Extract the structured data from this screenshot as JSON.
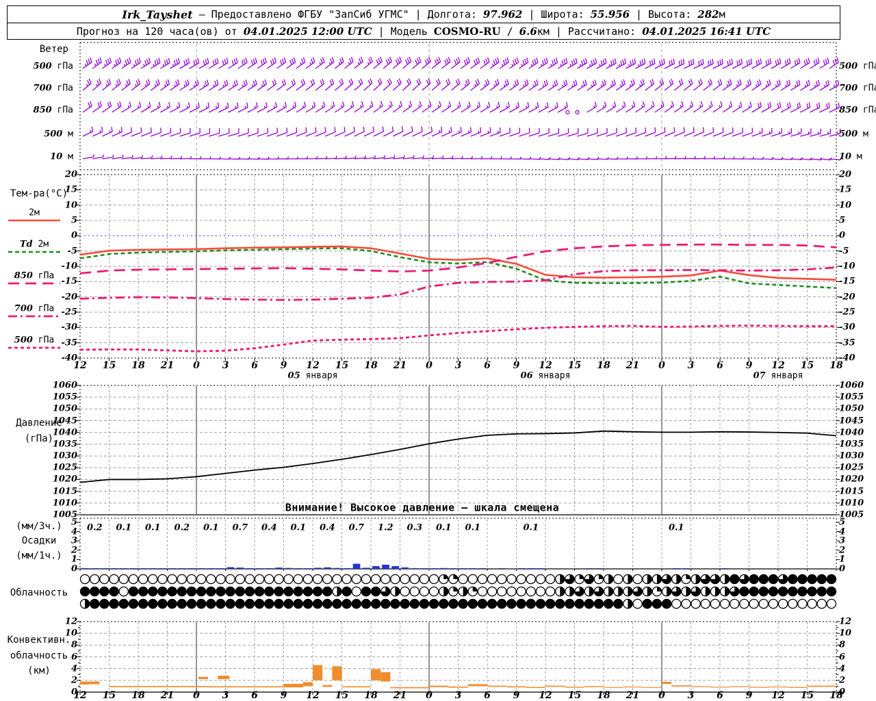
{
  "header": {
    "station": "Irk_Tayshet",
    "dash": "—",
    "provided": "Предоставлено ФГБУ \"ЗапСиб УГМС\"",
    "separator": "|",
    "lon_label": "Долгота:",
    "lon_value": "97.962",
    "lat_label": "Широта:",
    "lat_value": "55.956",
    "alt_label": "Высота:",
    "alt_value": "282",
    "alt_unit": "м",
    "forecast_label": "Прогноз на 120 часа(ов) от",
    "run_time": "04.01.2025 12:00 UTC",
    "model_label": "Модель",
    "model_name": "COSMO-RU",
    "slash": "/",
    "model_res_num": "6.6",
    "model_res_unit": "км",
    "calc_label": "Рассчитано:",
    "calc_time": "04.01.2025 16:41 UTC"
  },
  "x_axis": {
    "hour_labels": [
      12,
      15,
      18,
      21,
      0,
      3,
      6,
      9,
      12,
      15,
      18,
      21,
      0,
      3,
      6,
      9,
      12,
      15,
      18,
      21,
      0,
      3,
      6,
      9,
      12,
      15,
      18
    ],
    "date_labels": [
      {
        "text": "05 января",
        "slot": 8
      },
      {
        "text": "06 января",
        "slot": 16
      },
      {
        "text": "07 января",
        "slot": 24
      }
    ],
    "day_boundary_slots": [
      4,
      12,
      20
    ]
  },
  "chart_data": [
    {
      "id": "wind",
      "type": "scatter",
      "subtype": "wind-barbs",
      "title": "Ветер",
      "step_h": 3,
      "hours_total": 78,
      "barb_color": "#9400d3",
      "levels": [
        {
          "label": "500 гПа",
          "dir_deg": [
            55,
            56,
            58,
            60,
            60,
            58,
            56,
            55,
            54,
            52,
            50,
            50,
            52,
            54,
            55,
            56,
            58,
            60,
            62,
            63,
            64,
            65,
            64,
            62,
            60,
            58,
            56
          ],
          "speed_ms": [
            18,
            18,
            17,
            17,
            16,
            16,
            15,
            15,
            14,
            14,
            15,
            15,
            16,
            16,
            17,
            17,
            18,
            18,
            17,
            17,
            16,
            16,
            15,
            15,
            16,
            16,
            17
          ]
        },
        {
          "label": "700 гПа",
          "dir_deg": [
            50,
            52,
            54,
            56,
            58,
            58,
            56,
            54,
            52,
            50,
            48,
            48,
            50,
            52,
            54,
            56,
            58,
            58,
            56,
            54,
            52,
            52,
            54,
            56,
            58,
            60,
            60
          ],
          "speed_ms": [
            14,
            14,
            13,
            13,
            12,
            12,
            12,
            11,
            11,
            10,
            10,
            11,
            11,
            12,
            12,
            13,
            13,
            13,
            12,
            12,
            11,
            11,
            12,
            12,
            13,
            13,
            14
          ]
        },
        {
          "label": "850 гПа",
          "dir_deg": [
            55,
            57,
            60,
            62,
            64,
            64,
            62,
            60,
            58,
            56,
            54,
            54,
            56,
            58,
            60,
            62,
            62,
            60,
            58,
            56,
            55,
            55,
            57,
            60,
            62,
            64,
            65
          ],
          "speed_ms": [
            10,
            10,
            9,
            9,
            8,
            8,
            8,
            7,
            7,
            7,
            8,
            8,
            8,
            9,
            9,
            9,
            8,
            8,
            8,
            8,
            9,
            9,
            9,
            10,
            10,
            10,
            11
          ],
          "calm_hours": [
            50,
            51
          ]
        },
        {
          "label": "500 м",
          "dir_deg": [
            65,
            67,
            70,
            72,
            74,
            74,
            72,
            70,
            68,
            66,
            64,
            64,
            66,
            68,
            70,
            72,
            74,
            74,
            72,
            70,
            68,
            68,
            70,
            72,
            74,
            76,
            76
          ],
          "speed_ms": [
            7,
            7,
            6,
            6,
            6,
            5,
            5,
            5,
            5,
            6,
            6,
            6,
            7,
            7,
            7,
            6,
            6,
            5,
            5,
            5,
            6,
            6,
            6,
            7,
            7,
            7,
            8
          ]
        },
        {
          "label": "10 м",
          "dir_deg": [
            80,
            82,
            85,
            88,
            90,
            92,
            92,
            90,
            88,
            86,
            84,
            84,
            86,
            88,
            90,
            92,
            94,
            94,
            92,
            90,
            88,
            88,
            90,
            92,
            94,
            96,
            96
          ],
          "speed_ms": [
            4,
            4,
            3,
            3,
            3,
            3,
            2,
            2,
            2,
            3,
            3,
            3,
            4,
            4,
            4,
            3,
            3,
            3,
            2,
            2,
            3,
            3,
            3,
            4,
            4,
            4,
            4
          ]
        }
      ]
    },
    {
      "id": "temperature",
      "type": "line",
      "title": "Тем-ра(°C)",
      "ylim": [
        -40,
        20
      ],
      "ytick_step": 5,
      "step_h": 3,
      "zero_line_color": "#4a4aff",
      "series": [
        {
          "name": "2м",
          "color": "#f94b3a",
          "dash": "",
          "width": 2.6,
          "values": [
            -6.2,
            -4.9,
            -4.6,
            -4.5,
            -4.4,
            -4.1,
            -3.9,
            -3.8,
            -3.6,
            -3.5,
            -4.1,
            -5.8,
            -7.6,
            -7.9,
            -7.4,
            -9.2,
            -12.8,
            -13.6,
            -13.7,
            -13.6,
            -13.4,
            -13.0,
            -11.4,
            -12.9,
            -13.8,
            -14.1,
            -14.4
          ]
        },
        {
          "name": "Td 2м",
          "color": "#1f8c1f",
          "dash": "6 4",
          "width": 2.6,
          "values": [
            -7.4,
            -6.0,
            -5.5,
            -5.3,
            -5.1,
            -4.8,
            -4.6,
            -4.4,
            -4.2,
            -4.1,
            -5.0,
            -7.0,
            -8.7,
            -9.1,
            -8.6,
            -10.8,
            -14.6,
            -15.4,
            -15.5,
            -15.5,
            -15.3,
            -14.8,
            -13.4,
            -15.6,
            -16.1,
            -16.6,
            -17.1
          ]
        },
        {
          "name": "850 гПа",
          "color": "#ed1a75",
          "dash": "16 9",
          "width": 2.8,
          "values": [
            -12.3,
            -11.4,
            -11.1,
            -11.0,
            -10.9,
            -10.8,
            -10.7,
            -10.6,
            -10.8,
            -11.0,
            -11.4,
            -11.7,
            -11.4,
            -10.4,
            -8.9,
            -6.9,
            -5.1,
            -4.1,
            -3.5,
            -3.1,
            -3.0,
            -2.9,
            -2.9,
            -3.0,
            -3.0,
            -3.2,
            -3.8
          ]
        },
        {
          "name": "700 гПа",
          "color": "#ed1a75",
          "dash": "13 5 3 5",
          "width": 2.8,
          "values": [
            -20.6,
            -20.3,
            -20.1,
            -20.2,
            -20.4,
            -20.7,
            -20.9,
            -21.0,
            -20.9,
            -20.6,
            -20.3,
            -19.2,
            -16.6,
            -15.4,
            -15.1,
            -15.0,
            -14.6,
            -12.6,
            -11.6,
            -11.3,
            -11.3,
            -11.2,
            -11.3,
            -11.4,
            -11.3,
            -11.0,
            -10.4
          ]
        },
        {
          "name": "500 гПа",
          "color": "#ed1a75",
          "dash": "5 4",
          "width": 2.8,
          "values": [
            -37.3,
            -37.2,
            -37.2,
            -37.5,
            -37.8,
            -37.6,
            -36.8,
            -35.6,
            -34.3,
            -34.0,
            -33.8,
            -33.5,
            -32.6,
            -31.8,
            -31.2,
            -30.6,
            -30.1,
            -29.8,
            -29.6,
            -29.5,
            -29.8,
            -29.7,
            -29.5,
            -29.4,
            -29.5,
            -29.6,
            -29.6
          ]
        }
      ]
    },
    {
      "id": "pressure",
      "type": "line",
      "title": "Давление",
      "unit": "(гПа)",
      "ylim": [
        1005,
        1060
      ],
      "ytick_step": 5,
      "step_h": 3,
      "color": "#000000",
      "warning": "Внимание! Высокое давление — шкала смещена",
      "values": [
        1018.8,
        1020.0,
        1020.0,
        1020.3,
        1021.2,
        1022.6,
        1024.0,
        1025.2,
        1026.8,
        1028.6,
        1030.6,
        1032.8,
        1035.2,
        1037.2,
        1038.8,
        1039.4,
        1039.5,
        1039.8,
        1040.6,
        1040.3,
        1040.1,
        1040.1,
        1040.3,
        1040.2,
        1040.0,
        1039.7,
        1038.6
      ]
    },
    {
      "id": "precipitation",
      "type": "bar",
      "title": "Осадки",
      "unit_top": "(мм/3ч.)",
      "unit_bottom": "(мм/1ч.)",
      "ylim": [
        0,
        5
      ],
      "bar_color": "#2435cf",
      "amount_labels_3h": [
        "0.2",
        "0.1",
        "0.1",
        "0.2",
        "0.1",
        "0.7",
        "0.4",
        "0.1",
        "0.4",
        "0.7",
        "1.2",
        "0.3",
        "0.1",
        "0.1",
        "",
        "0.1",
        "",
        "",
        "",
        "",
        "0.1",
        "",
        "",
        "",
        "",
        ""
      ],
      "hourly_bars": [
        [
          0,
          0.08
        ],
        [
          1,
          0.07
        ],
        [
          2,
          0.05
        ],
        [
          3,
          0.05
        ],
        [
          4,
          0.04
        ],
        [
          5,
          0.03
        ],
        [
          6,
          0.04
        ],
        [
          7,
          0.03
        ],
        [
          8,
          0.03
        ],
        [
          9,
          0.07
        ],
        [
          10,
          0.07
        ],
        [
          11,
          0.06
        ],
        [
          12,
          0.04
        ],
        [
          13,
          0.03
        ],
        [
          14,
          0.04
        ],
        [
          15,
          0.18
        ],
        [
          16,
          0.14
        ],
        [
          17,
          0.08
        ],
        [
          18,
          0.06
        ],
        [
          19,
          0.05
        ],
        [
          20,
          0.14
        ],
        [
          21,
          0.1
        ],
        [
          22,
          0.06
        ],
        [
          23,
          0.05
        ],
        [
          24,
          0.12
        ],
        [
          25,
          0.16
        ],
        [
          26,
          0.1
        ],
        [
          27,
          0.08
        ],
        [
          28,
          0.55
        ],
        [
          29,
          0.12
        ],
        [
          30,
          0.3
        ],
        [
          31,
          0.45
        ],
        [
          32,
          0.3
        ],
        [
          33,
          0.16
        ],
        [
          34,
          0.06
        ],
        [
          35,
          0.05
        ],
        [
          36,
          0.06
        ],
        [
          37,
          0.09
        ],
        [
          38,
          0.07
        ],
        [
          39,
          0.05
        ],
        [
          40,
          0.04
        ],
        [
          41,
          0.03
        ],
        [
          43,
          0.03
        ],
        [
          45,
          0.04
        ],
        [
          46,
          0.04
        ],
        [
          47,
          0.03
        ],
        [
          52,
          0.04
        ],
        [
          53,
          0.03
        ],
        [
          61,
          0.04
        ],
        [
          62,
          0.03
        ],
        [
          66,
          0.03
        ]
      ]
    },
    {
      "id": "cloudiness",
      "type": "heatmap",
      "subtype": "cloud-cover-rows",
      "title": "Облачность",
      "cover_eighths_rows": [
        "000000000000000000000000000000000000022000000000046262404044642466486888688888",
        "888808888888888888888888884808864000042420000000044646444642464644468888888888",
        "488888888888888888888888888888888888888888888888888888884088800000000000000000"
      ]
    },
    {
      "id": "convective",
      "type": "bar",
      "subtype": "range-bars",
      "title_1": "Конвективн.",
      "title_2": "облачность",
      "title_3": "(км)",
      "ylim": [
        0,
        12
      ],
      "ytick_step": 2,
      "bar_color": "#ef8d2e",
      "bars": [
        [
          0,
          1,
          1.3,
          1.8
        ],
        [
          1,
          2,
          1.35,
          1.8
        ],
        [
          3,
          13,
          0.85,
          1.05
        ],
        [
          12.2,
          13.2,
          2.2,
          2.6
        ],
        [
          14.2,
          15.4,
          2.2,
          2.8
        ],
        [
          13,
          23,
          0.8,
          1.0
        ],
        [
          21,
          23,
          0.95,
          1.4
        ],
        [
          23,
          24,
          1.0,
          1.7
        ],
        [
          24,
          25,
          2.0,
          4.6
        ],
        [
          25,
          26,
          0.9,
          1.2
        ],
        [
          26,
          27,
          2.0,
          4.4
        ],
        [
          27,
          30,
          0.8,
          1.0
        ],
        [
          30,
          31,
          2.0,
          3.9
        ],
        [
          31,
          32,
          1.8,
          3.4
        ],
        [
          32,
          36,
          0.65,
          0.85
        ],
        [
          36,
          38,
          0.85,
          1.1
        ],
        [
          38,
          40,
          0.75,
          0.95
        ],
        [
          40,
          42,
          1.0,
          1.35
        ],
        [
          42,
          44,
          0.9,
          1.1
        ],
        [
          44,
          46,
          0.8,
          1.0
        ],
        [
          46,
          48,
          0.7,
          0.88
        ],
        [
          48,
          50,
          0.9,
          1.1
        ],
        [
          50,
          52,
          0.75,
          0.92
        ],
        [
          52,
          54,
          0.85,
          1.02
        ],
        [
          54,
          56,
          0.72,
          0.86
        ],
        [
          56,
          58,
          0.8,
          0.95
        ],
        [
          58,
          60,
          0.72,
          0.86
        ],
        [
          60,
          61,
          1.4,
          1.75
        ],
        [
          61,
          63,
          0.95,
          1.15
        ],
        [
          63,
          65,
          0.85,
          1.0
        ],
        [
          65,
          67,
          0.78,
          0.92
        ],
        [
          67,
          69,
          0.85,
          1.0
        ],
        [
          69,
          71,
          0.75,
          0.9
        ],
        [
          71,
          73,
          0.8,
          0.95
        ],
        [
          73,
          75,
          0.72,
          0.88
        ],
        [
          75,
          78,
          0.9,
          1.1
        ]
      ]
    }
  ]
}
